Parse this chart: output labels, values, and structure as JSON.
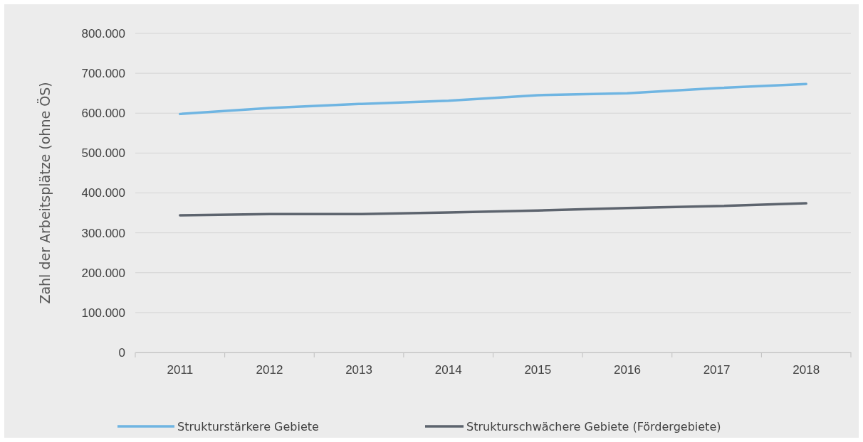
{
  "chart_data": {
    "type": "line",
    "ylabel": "Zahl der Arbeitsplätze  (ohne ÖS)",
    "categories": [
      "2011",
      "2012",
      "2013",
      "2014",
      "2015",
      "2016",
      "2017",
      "2018"
    ],
    "series": [
      {
        "name": "Strukturstärkere Gebiete",
        "color": "#6fb5e2",
        "values": [
          598000,
          613000,
          623000,
          631000,
          645000,
          650000,
          663000,
          673000
        ]
      },
      {
        "name": "Strukturschwächere Gebiete (Fördergebiete)",
        "color": "#5d646e",
        "values": [
          344000,
          347000,
          347000,
          351000,
          356000,
          362000,
          367000,
          374000
        ]
      }
    ],
    "ylim": [
      0,
      800000
    ],
    "yticks": [
      {
        "value": 0,
        "label": "0"
      },
      {
        "value": 100000,
        "label": "100.000"
      },
      {
        "value": 200000,
        "label": "200.000"
      },
      {
        "value": 300000,
        "label": "300.000"
      },
      {
        "value": 400000,
        "label": "400.000"
      },
      {
        "value": 500000,
        "label": "500.000"
      },
      {
        "value": 600000,
        "label": "600.000"
      },
      {
        "value": 700000,
        "label": "700.000"
      },
      {
        "value": 800000,
        "label": "800.000"
      }
    ],
    "grid": "y",
    "legend": "bottom",
    "marker": "none",
    "line_style": "solid"
  }
}
